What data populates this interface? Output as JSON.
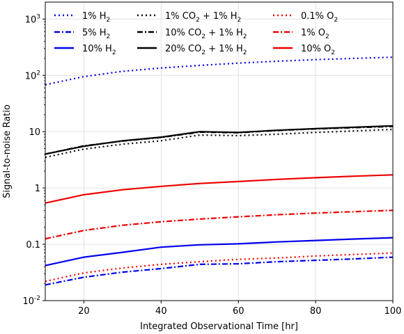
{
  "chart_data": {
    "type": "line",
    "xlabel": "Integrated Observational Time [hr]",
    "ylabel": "Signal-to-noise Ratio",
    "xlim": [
      10,
      100
    ],
    "ylim": [
      0.01,
      2000
    ],
    "yscale": "log",
    "grid": true,
    "legend_placement": "top",
    "x_ticks": [
      "20",
      "40",
      "60",
      "80",
      "100"
    ],
    "x": [
      10,
      20,
      30,
      40,
      50,
      60,
      70,
      80,
      90,
      100
    ],
    "series": [
      {
        "name": "1% H",
        "sub": "2",
        "color": "#0000ee",
        "dash": "dotted",
        "values": [
          68,
          95,
          118,
          135,
          150,
          165,
          178,
          190,
          200,
          210
        ]
      },
      {
        "name": "5% H",
        "sub": "2",
        "color": "#0000ee",
        "dash": "dashdot",
        "values": [
          0.019,
          0.026,
          0.032,
          0.037,
          0.044,
          0.045,
          0.049,
          0.052,
          0.055,
          0.059
        ]
      },
      {
        "name": "10% H",
        "sub": "2",
        "color": "#0000ee",
        "dash": "solid",
        "values": [
          0.042,
          0.059,
          0.072,
          0.089,
          0.098,
          0.102,
          0.11,
          0.117,
          0.124,
          0.131
        ]
      },
      {
        "name": "1% CO",
        "sub": "2",
        "name2": " + 1% H",
        "sub2": "2",
        "color": "#000000",
        "dash": "dotted",
        "values": [
          3.5,
          4.9,
          6.0,
          6.9,
          8.7,
          8.5,
          9.0,
          9.7,
          10.3,
          11.0
        ]
      },
      {
        "name": "10% CO",
        "sub": "2",
        "name2": " + 1% H",
        "sub2": "2",
        "color": "#000000",
        "dash": "dashdot",
        "values": [
          4.0,
          5.6,
          6.8,
          7.9,
          9.8,
          9.6,
          10.5,
          11.2,
          11.8,
          12.4
        ]
      },
      {
        "name": "20% CO",
        "sub": "2",
        "name2": " + 1% H",
        "sub2": "2",
        "color": "#000000",
        "dash": "solid",
        "values": [
          4.0,
          5.5,
          6.9,
          8.0,
          10.0,
          9.7,
          10.6,
          11.3,
          12.0,
          12.7
        ]
      },
      {
        "name": "0.1% O",
        "sub": "2",
        "color": "#ee0000",
        "dash": "dotted",
        "values": [
          0.022,
          0.031,
          0.038,
          0.044,
          0.049,
          0.054,
          0.057,
          0.062,
          0.066,
          0.07
        ]
      },
      {
        "name": "1% O",
        "sub": "2",
        "color": "#ee0000",
        "dash": "dashdot",
        "values": [
          0.125,
          0.176,
          0.218,
          0.251,
          0.281,
          0.307,
          0.335,
          0.358,
          0.38,
          0.4
        ]
      },
      {
        "name": "10% O",
        "sub": "2",
        "color": "#ee0000",
        "dash": "solid",
        "values": [
          0.54,
          0.76,
          0.93,
          1.07,
          1.2,
          1.3,
          1.42,
          1.52,
          1.62,
          1.71
        ]
      }
    ]
  }
}
